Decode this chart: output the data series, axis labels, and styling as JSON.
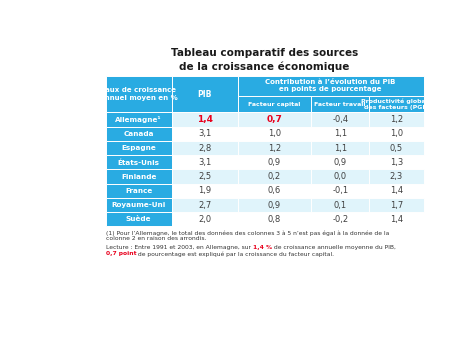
{
  "title_line1": "Tableau comparatif des sources",
  "title_line2": "de la croissance économique",
  "header_col1_line1": "Taux de croissance",
  "header_col1_line2": "annuel moyen en %",
  "header_group_line1": "Contribution à l’évolution du PIB",
  "header_group_line2": "en points de pourcentage",
  "subheader": [
    "PIB",
    "Facteur capital",
    "Facteur travail",
    "Productivité globale\ndes facteurs (PGF)"
  ],
  "countries": [
    "Allemagne¹",
    "Canada",
    "Espagne",
    "États-Unis",
    "Finlande",
    "France",
    "Royaume-Uni",
    "Suède"
  ],
  "data": [
    [
      1.4,
      0.7,
      -0.4,
      1.2
    ],
    [
      3.1,
      1.0,
      1.1,
      1.0
    ],
    [
      2.8,
      1.2,
      1.1,
      0.5
    ],
    [
      3.1,
      0.9,
      0.9,
      1.3
    ],
    [
      2.5,
      0.2,
      0.0,
      2.3
    ],
    [
      1.9,
      0.6,
      -0.1,
      1.4
    ],
    [
      2.7,
      0.9,
      0.1,
      1.7
    ],
    [
      2.0,
      0.8,
      -0.2,
      1.4
    ]
  ],
  "header_bg": "#29ABE2",
  "row_bg_even": "#E0F4FB",
  "row_bg_odd": "#FFFFFF",
  "country_col_bg": "#29ABE2",
  "country_text_color": "#FFFFFF",
  "header_text_color": "#FFFFFF",
  "data_text_color": "#404040",
  "highlight_red_row": 0,
  "highlight_red_cols": [
    0,
    1
  ],
  "red_color": "#E8001C",
  "note1_line1": "(1) Pour l’Allemagne, le total des données des colonnes 3 à 5 n’est pas égal à la donnée de la",
  "note1_line2": "colonne 2 en raison des arrondis.",
  "note2_prefix": "Lecture : Entre 1991 et 2003, en Allemagne, sur ",
  "note2_red1": "1,4 %",
  "note2_mid": " de croissance annuelle moyenne du PIB,",
  "note2_line2_red": "0,7 point",
  "note2_line2_rest": " de pourcentage est expliqué par la croissance du facteur capital.",
  "background_color": "#FFFFFF"
}
